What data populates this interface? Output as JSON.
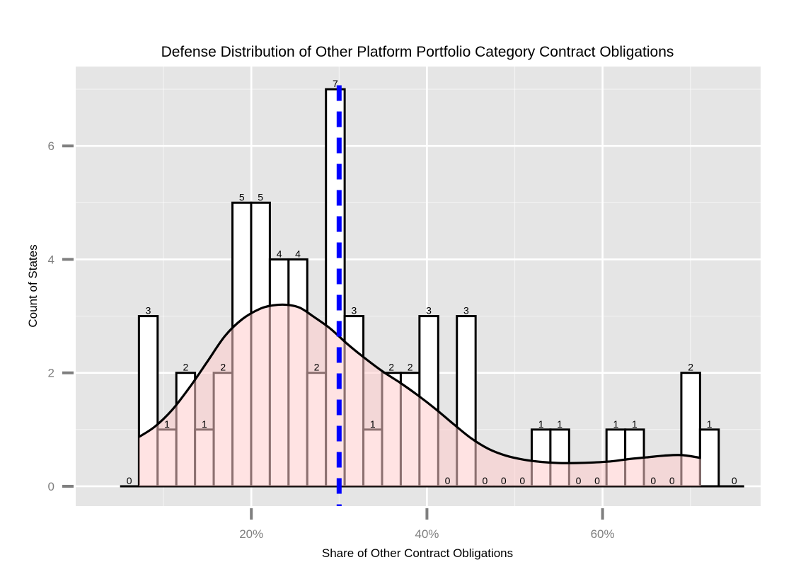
{
  "chart_data": {
    "type": "bar",
    "title": "Defense Distribution of Other Platform Portfolio Category Contract Obligations",
    "xlabel": "Share of Other Contract Obligations",
    "ylabel": "Count of States",
    "bin_width": 2.13,
    "x_start": 7.2,
    "counts": [
      3,
      1,
      2,
      1,
      2,
      5,
      5,
      4,
      4,
      2,
      7,
      3,
      1,
      2,
      2,
      3,
      0,
      3,
      0,
      0,
      0,
      1,
      1,
      0,
      0,
      1,
      1,
      0,
      0,
      2,
      1
    ],
    "zero_labels": [
      {
        "x": 6.1,
        "text": "0"
      },
      {
        "x": 75.0,
        "text": "0"
      }
    ],
    "density_x": [
      7.2,
      9,
      11,
      13,
      15,
      17,
      19,
      21,
      22.5,
      24,
      25.5,
      27,
      29,
      31,
      33,
      35,
      37,
      39,
      41,
      43,
      45,
      47,
      49,
      51,
      53,
      55,
      57,
      59,
      61,
      63,
      65,
      67,
      69,
      71.2
    ],
    "density_y": [
      0.87,
      1.05,
      1.35,
      1.75,
      2.2,
      2.65,
      2.95,
      3.13,
      3.19,
      3.2,
      3.15,
      3.0,
      2.78,
      2.5,
      2.25,
      2.02,
      1.82,
      1.6,
      1.36,
      1.1,
      0.85,
      0.66,
      0.54,
      0.47,
      0.43,
      0.41,
      0.41,
      0.42,
      0.44,
      0.48,
      0.51,
      0.54,
      0.55,
      0.5
    ],
    "mean_line": 30,
    "xlim": [
      0,
      78
    ],
    "ylim": [
      -0.35,
      7.4
    ],
    "x_ticks": [
      20,
      40,
      60
    ],
    "x_tick_labels": [
      "20%",
      "40%",
      "60%"
    ],
    "y_ticks": [
      0,
      2,
      4,
      6
    ],
    "y_tick_labels": [
      "0",
      "2",
      "4",
      "6"
    ],
    "grid": true,
    "legend": "none",
    "colors": {
      "panel": "#e5e5e5",
      "grid": "#ffffff",
      "bar_fill": "#ffffff",
      "bar_stroke": "#000000",
      "density_fill": "#ffcccc",
      "mean_line": "#0000ff",
      "tick": "#7f7f7f"
    }
  }
}
